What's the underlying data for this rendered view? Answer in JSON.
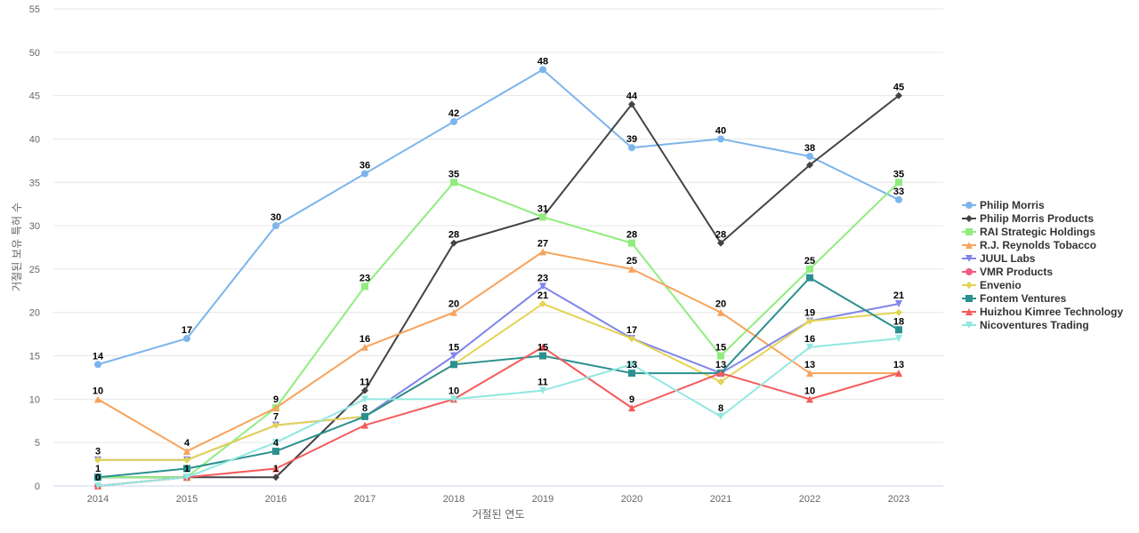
{
  "chart_data": {
    "type": "line",
    "title": "",
    "xlabel": "거절된 연도",
    "ylabel": "거절된 보유 특허 수",
    "x": [
      "2014",
      "2015",
      "2016",
      "2017",
      "2018",
      "2019",
      "2020",
      "2021",
      "2022",
      "2023"
    ],
    "ylim": [
      0,
      55
    ],
    "yticks": [
      0,
      5,
      10,
      15,
      20,
      25,
      30,
      35,
      40,
      45,
      50,
      55
    ],
    "grid": true,
    "legend_position": "right",
    "series": [
      {
        "name": "Philip Morris",
        "color": "#7cb5ec",
        "marker": "circle",
        "values": [
          14,
          17,
          30,
          36,
          42,
          48,
          39,
          40,
          38,
          33
        ]
      },
      {
        "name": "Philip Morris Products",
        "color": "#434348",
        "marker": "diamond",
        "values": [
          1,
          1,
          1,
          11,
          28,
          31,
          44,
          28,
          37,
          45
        ]
      },
      {
        "name": "RAI Strategic Holdings",
        "color": "#90ed7d",
        "marker": "square",
        "values": [
          1,
          1,
          9,
          23,
          35,
          31,
          28,
          15,
          25,
          35
        ]
      },
      {
        "name": "R.J. Reynolds Tobacco",
        "color": "#f7a35c",
        "marker": "triangle",
        "values": [
          10,
          4,
          9,
          16,
          20,
          27,
          25,
          20,
          13,
          13
        ]
      },
      {
        "name": "JUUL Labs",
        "color": "#8085e9",
        "marker": "triangle-down",
        "values": [
          3,
          3,
          7,
          8,
          15,
          23,
          17,
          13,
          19,
          21
        ]
      },
      {
        "name": "VMR Products",
        "color": "#f15c80",
        "marker": "circle",
        "values": [
          0,
          1,
          null,
          null,
          null,
          null,
          null,
          null,
          null,
          null
        ]
      },
      {
        "name": "Envenio",
        "color": "#e4d354",
        "marker": "diamond",
        "values": [
          3,
          3,
          7,
          8,
          14,
          21,
          17,
          12,
          19,
          20
        ]
      },
      {
        "name": "Fontem Ventures",
        "color": "#2b908f",
        "marker": "square",
        "values": [
          1,
          2,
          4,
          8,
          14,
          15,
          13,
          13,
          24,
          18
        ]
      },
      {
        "name": "Huizhou Kimree Technology",
        "color": "#f45b5b",
        "marker": "triangle",
        "values": [
          0,
          1,
          2,
          7,
          10,
          16,
          9,
          13,
          10,
          13
        ]
      },
      {
        "name": "Nicoventures Trading",
        "color": "#91e8e1",
        "marker": "triangle-down",
        "values": [
          0,
          1,
          5,
          10,
          10,
          11,
          14,
          8,
          16,
          17
        ]
      }
    ],
    "data_labels": {
      "2014": [
        14,
        10,
        3,
        1,
        0
      ],
      "2015": [
        17,
        4,
        1
      ],
      "2016": [
        30,
        9,
        7,
        4,
        1
      ],
      "2017": [
        36,
        23,
        16,
        11,
        8
      ],
      "2018": [
        42,
        35,
        28,
        20,
        15,
        10
      ],
      "2019": [
        48,
        31,
        27,
        23,
        21,
        15,
        11
      ],
      "2020": [
        44,
        39,
        28,
        25,
        17,
        13,
        9
      ],
      "2021": [
        40,
        28,
        20,
        15,
        13,
        8
      ],
      "2022": [
        38,
        25,
        19,
        16,
        13,
        10
      ],
      "2023": [
        45,
        35,
        33,
        21,
        18,
        13
      ]
    }
  }
}
